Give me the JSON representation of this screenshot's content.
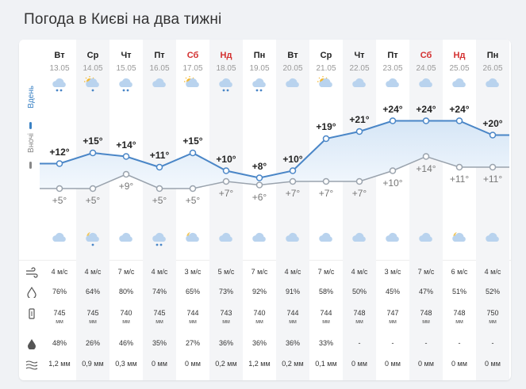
{
  "title": "Погода в Києві на два тижні",
  "legend": {
    "day": "Вдень",
    "night": "Вночі"
  },
  "colors": {
    "day_line": "#4a86c7",
    "night_line": "#9aa3ad",
    "weekend": "#d32f2f",
    "fill_top": "#d6e6f6",
    "fill_bottom": "#f3f8fd"
  },
  "days": [
    {
      "name": "Вт",
      "date": "13.05",
      "weekend": false,
      "day_icon": "rain-cloud-icon",
      "night_icon": "cloud-icon",
      "tday": "+12°",
      "tnight": "+5°",
      "wind": "4 м/с",
      "humidity": "76%",
      "pressure": "745",
      "pressure_unit": "мм",
      "precip_chance": "48%",
      "precip": "1,2 мм"
    },
    {
      "name": "Ср",
      "date": "14.05",
      "weekend": false,
      "day_icon": "sun-rain-icon",
      "night_icon": "moon-rain-icon",
      "tday": "+15°",
      "tnight": "+5°",
      "wind": "4 м/с",
      "humidity": "64%",
      "pressure": "745",
      "pressure_unit": "мм",
      "precip_chance": "26%",
      "precip": "0,9 мм"
    },
    {
      "name": "Чт",
      "date": "15.05",
      "weekend": false,
      "day_icon": "rain-cloud-icon",
      "night_icon": "cloud-icon",
      "tday": "+14°",
      "tnight": "+9°",
      "wind": "7 м/с",
      "humidity": "80%",
      "pressure": "740",
      "pressure_unit": "мм",
      "precip_chance": "46%",
      "precip": "0,3 мм"
    },
    {
      "name": "Пт",
      "date": "16.05",
      "weekend": false,
      "day_icon": "cloud-icon",
      "night_icon": "rain-cloud-icon",
      "tday": "+11°",
      "tnight": "+5°",
      "wind": "4 м/с",
      "humidity": "74%",
      "pressure": "745",
      "pressure_unit": "мм",
      "precip_chance": "35%",
      "precip": "0 мм"
    },
    {
      "name": "Сб",
      "date": "17.05",
      "weekend": true,
      "day_icon": "sun-cloud-icon",
      "night_icon": "moon-cloud-icon",
      "tday": "+15°",
      "tnight": "+5°",
      "wind": "3 м/с",
      "humidity": "65%",
      "pressure": "744",
      "pressure_unit": "мм",
      "precip_chance": "27%",
      "precip": "0 мм"
    },
    {
      "name": "Нд",
      "date": "18.05",
      "weekend": true,
      "day_icon": "rain-cloud-icon",
      "night_icon": "cloud-icon",
      "tday": "+10°",
      "tnight": "+7°",
      "wind": "5 м/с",
      "humidity": "73%",
      "pressure": "743",
      "pressure_unit": "мм",
      "precip_chance": "36%",
      "precip": "0,2 мм"
    },
    {
      "name": "Пн",
      "date": "19.05",
      "weekend": false,
      "day_icon": "rain-cloud-icon",
      "night_icon": "cloud-icon",
      "tday": "+8°",
      "tnight": "+6°",
      "wind": "7 м/с",
      "humidity": "92%",
      "pressure": "740",
      "pressure_unit": "мм",
      "precip_chance": "36%",
      "precip": "1,2 мм"
    },
    {
      "name": "Вт",
      "date": "20.05",
      "weekend": false,
      "day_icon": "cloud-icon",
      "night_icon": "cloud-icon",
      "tday": "+10°",
      "tnight": "+7°",
      "wind": "4 м/с",
      "humidity": "91%",
      "pressure": "744",
      "pressure_unit": "мм",
      "precip_chance": "36%",
      "precip": "0,2 мм"
    },
    {
      "name": "Ср",
      "date": "21.05",
      "weekend": false,
      "day_icon": "sun-cloud-icon",
      "night_icon": "cloud-icon",
      "tday": "+19°",
      "tnight": "+7°",
      "wind": "7 м/с",
      "humidity": "58%",
      "pressure": "744",
      "pressure_unit": "мм",
      "precip_chance": "33%",
      "precip": "0,1 мм"
    },
    {
      "name": "Чт",
      "date": "22.05",
      "weekend": false,
      "day_icon": "cloud-icon",
      "night_icon": "cloud-icon",
      "tday": "+21°",
      "tnight": "+7°",
      "wind": "4 м/с",
      "humidity": "50%",
      "pressure": "748",
      "pressure_unit": "мм",
      "precip_chance": "-",
      "precip": "0 мм"
    },
    {
      "name": "Пт",
      "date": "23.05",
      "weekend": false,
      "day_icon": "cloud-icon",
      "night_icon": "cloud-icon",
      "tday": "+24°",
      "tnight": "+10°",
      "wind": "3 м/с",
      "humidity": "45%",
      "pressure": "747",
      "pressure_unit": "мм",
      "precip_chance": "-",
      "precip": "0 мм"
    },
    {
      "name": "Сб",
      "date": "24.05",
      "weekend": true,
      "day_icon": "cloud-icon",
      "night_icon": "cloud-icon",
      "tday": "+24°",
      "tnight": "+14°",
      "wind": "7 м/с",
      "humidity": "47%",
      "pressure": "748",
      "pressure_unit": "мм",
      "precip_chance": "-",
      "precip": "0 мм"
    },
    {
      "name": "Нд",
      "date": "25.05",
      "weekend": true,
      "day_icon": "cloud-icon",
      "night_icon": "moon-cloud-icon",
      "tday": "+24°",
      "tnight": "+11°",
      "wind": "6 м/с",
      "humidity": "51%",
      "pressure": "748",
      "pressure_unit": "мм",
      "precip_chance": "-",
      "precip": "0 мм"
    },
    {
      "name": "Пн",
      "date": "26.05",
      "weekend": false,
      "day_icon": "cloud-icon",
      "night_icon": "cloud-icon",
      "tday": "+20°",
      "tnight": "+11°",
      "wind": "4 м/с",
      "humidity": "52%",
      "pressure": "750",
      "pressure_unit": "мм",
      "precip_chance": "-",
      "precip": "0 мм"
    }
  ],
  "metric_icons": [
    "wind-icon",
    "humidity-drop-icon",
    "barometer-icon",
    "precip-chance-drop-icon",
    "precip-amount-icon"
  ],
  "chart_data": {
    "type": "line",
    "x": [
      "13.05",
      "14.05",
      "15.05",
      "16.05",
      "17.05",
      "18.05",
      "19.05",
      "20.05",
      "21.05",
      "22.05",
      "23.05",
      "24.05",
      "25.05",
      "26.05"
    ],
    "series": [
      {
        "name": "Вдень",
        "values": [
          12,
          15,
          14,
          11,
          15,
          10,
          8,
          10,
          19,
          21,
          24,
          24,
          24,
          20
        ]
      },
      {
        "name": "Вночі",
        "values": [
          5,
          5,
          9,
          5,
          5,
          7,
          6,
          7,
          7,
          7,
          10,
          14,
          11,
          11
        ]
      }
    ]
  }
}
